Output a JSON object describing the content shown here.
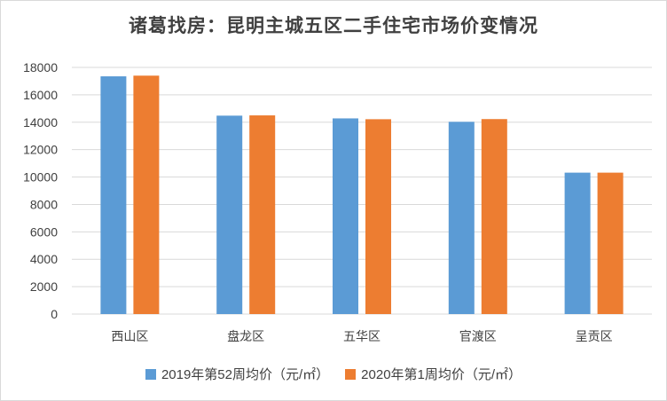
{
  "chart_data": {
    "type": "bar",
    "title": "诸葛找房：昆明主城五区二手住宅市场价变情况",
    "categories": [
      "西山区",
      "盘龙区",
      "五华区",
      "官渡区",
      "呈贡区"
    ],
    "series": [
      {
        "name": "2019年第52周均价（元/㎡）",
        "color": "#5b9bd5",
        "values": [
          17350,
          14480,
          14280,
          14030,
          10320
        ]
      },
      {
        "name": "2020年第1周均价（元/㎡）",
        "color": "#ed7d31",
        "values": [
          17400,
          14500,
          14220,
          14230,
          10320
        ]
      }
    ],
    "ylim": [
      0,
      18000
    ],
    "yticks": [
      "0",
      "2000",
      "4000",
      "6000",
      "8000",
      "10000",
      "12000",
      "14000",
      "16000",
      "18000"
    ],
    "grid": true,
    "legend_position": "bottom"
  }
}
